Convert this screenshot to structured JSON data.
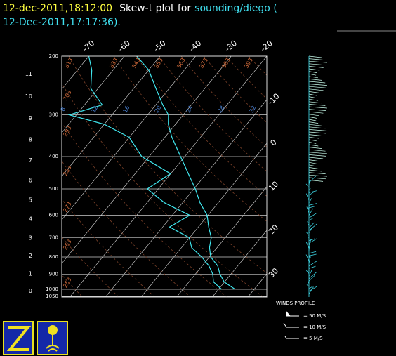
{
  "chart_data": {
    "type": "skewt",
    "title_parts": [
      {
        "text": "12-dec-2011,18:12:00",
        "color": "#ffff40"
      },
      {
        "text": "Skew-t plot for",
        "color": "#ffffff"
      },
      {
        "text": "sounding/diego (",
        "color": "#40e0f0"
      },
      {
        "text": "12-Dec-2011,17:17:36).",
        "color": "#40e0f0"
      }
    ],
    "plim": [
      200,
      1050
    ],
    "pressure_ticks": [
      200,
      300,
      400,
      500,
      600,
      700,
      800,
      900,
      1000,
      1050
    ],
    "height_ticks": [
      0,
      1,
      2,
      3,
      4,
      5,
      6,
      7,
      8,
      9,
      10,
      11
    ],
    "temperature_ticks_top": [
      -70,
      -60,
      -50,
      -40,
      -30,
      -20
    ],
    "temperature_ticks_right": [
      -10,
      0,
      10,
      20,
      30
    ],
    "dry_adiabats": [
      253,
      263,
      273,
      283,
      293,
      303,
      313,
      333,
      343,
      353,
      363,
      373,
      383,
      393
    ],
    "moist_labels": [
      8,
      12,
      16,
      20,
      24,
      28,
      32
    ],
    "series": [
      {
        "color": "#40e8f0",
        "pressure": [
          1000,
          950,
          900,
          850,
          800,
          750,
          700,
          650,
          600,
          550,
          500,
          450,
          400,
          350,
          320,
          300,
          280,
          250,
          220,
          200
        ],
        "values": [
          24.8,
          20,
          17,
          14.5,
          10.5,
          8,
          6.2,
          3,
          -0.1,
          -5,
          -9.5,
          -15,
          -21.1,
          -28,
          -32,
          -34.1,
          -38,
          -43.7,
          -50,
          -56.5
        ]
      },
      {
        "color": "#40e8f0",
        "pressure": [
          1000,
          950,
          900,
          850,
          800,
          750,
          700,
          650,
          600,
          550,
          500,
          450,
          400,
          350,
          320,
          300,
          280,
          250,
          220,
          200
        ],
        "values": [
          21,
          17,
          15,
          12,
          8,
          3,
          0,
          -8,
          -5,
          -15,
          -23,
          -20,
          -32,
          -40,
          -50,
          -62,
          -55,
          -62,
          -66,
          -70
        ]
      }
    ],
    "wind_legend": {
      "title": "WINDS PROFILE",
      "entries": [
        "= 50 M/S",
        "= 10 M/S",
        "= 5 M/S"
      ]
    }
  }
}
